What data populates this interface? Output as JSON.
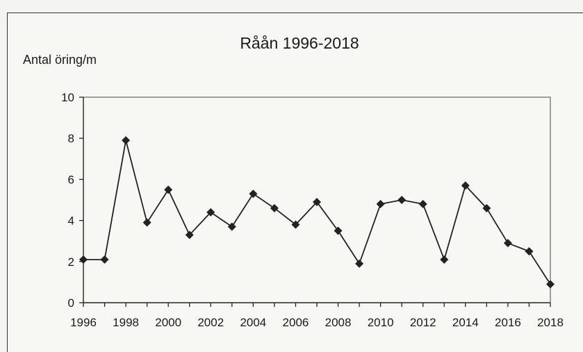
{
  "chart_data": {
    "type": "line",
    "title": "Råån 1996-2018",
    "ylabel": "Antal öring/m",
    "xlabel": "",
    "ylim": [
      0,
      10
    ],
    "yticks": [
      "0",
      "2",
      "4",
      "6",
      "8",
      "10"
    ],
    "xlim": [
      1996,
      2018
    ],
    "xticks": [
      "1996",
      "1998",
      "2000",
      "2002",
      "2004",
      "2006",
      "2008",
      "2010",
      "2012",
      "2014",
      "2016",
      "2018"
    ],
    "grid": false,
    "colors": {
      "line": "#222222",
      "marker": "#222222"
    },
    "series": [
      {
        "x": [
          1996,
          1997,
          1998,
          1999,
          2000,
          2001,
          2002,
          2003,
          2004,
          2005,
          2006,
          2007,
          2008,
          2009,
          2010,
          2011,
          2012,
          2013,
          2014,
          2015,
          2016,
          2017,
          2018
        ],
        "values": [
          2.1,
          2.1,
          7.9,
          3.9,
          5.5,
          3.3,
          4.4,
          3.7,
          5.3,
          4.6,
          3.8,
          4.9,
          3.5,
          1.9,
          4.8,
          5.0,
          4.8,
          2.1,
          5.7,
          4.6,
          2.9,
          2.5,
          0.9
        ]
      }
    ]
  }
}
